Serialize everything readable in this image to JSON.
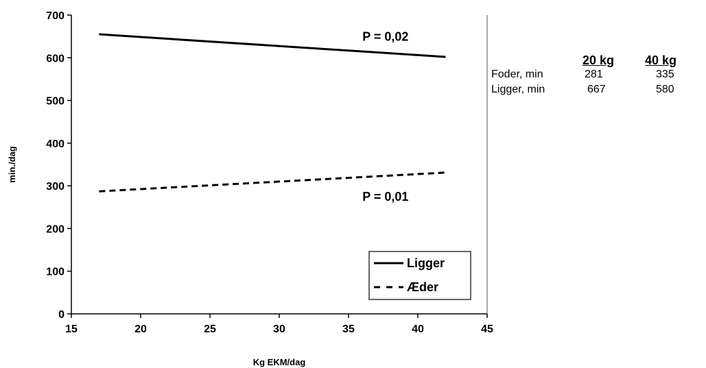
{
  "chart_data": {
    "type": "line",
    "xlabel": "Kg EKM/dag",
    "ylabel": "min./dag",
    "xlim": [
      15,
      45
    ],
    "ylim": [
      0,
      700
    ],
    "xticks": [
      15,
      20,
      25,
      30,
      35,
      40,
      45
    ],
    "yticks": [
      0,
      100,
      200,
      300,
      400,
      500,
      600,
      700
    ],
    "grid": false,
    "legend_position": "bottom-right",
    "series": [
      {
        "name": "Ligger",
        "style": "solid",
        "color": "#000000",
        "x": [
          17,
          42
        ],
        "y": [
          655,
          602
        ]
      },
      {
        "name": "Æder",
        "style": "dashed",
        "color": "#000000",
        "x": [
          17,
          42
        ],
        "y": [
          287,
          331
        ]
      }
    ],
    "annotations": [
      {
        "text": "P = 0,02",
        "x": 36,
        "y": 640
      },
      {
        "text": "P = 0,01",
        "x": 36,
        "y": 265
      }
    ]
  },
  "side_table": {
    "columns": [
      "20 kg",
      "40 kg"
    ],
    "rows": [
      {
        "label": "Foder, min",
        "values": [
          "281",
          "335"
        ]
      },
      {
        "label": "Ligger, min",
        "values": [
          "667",
          "580"
        ]
      }
    ]
  }
}
